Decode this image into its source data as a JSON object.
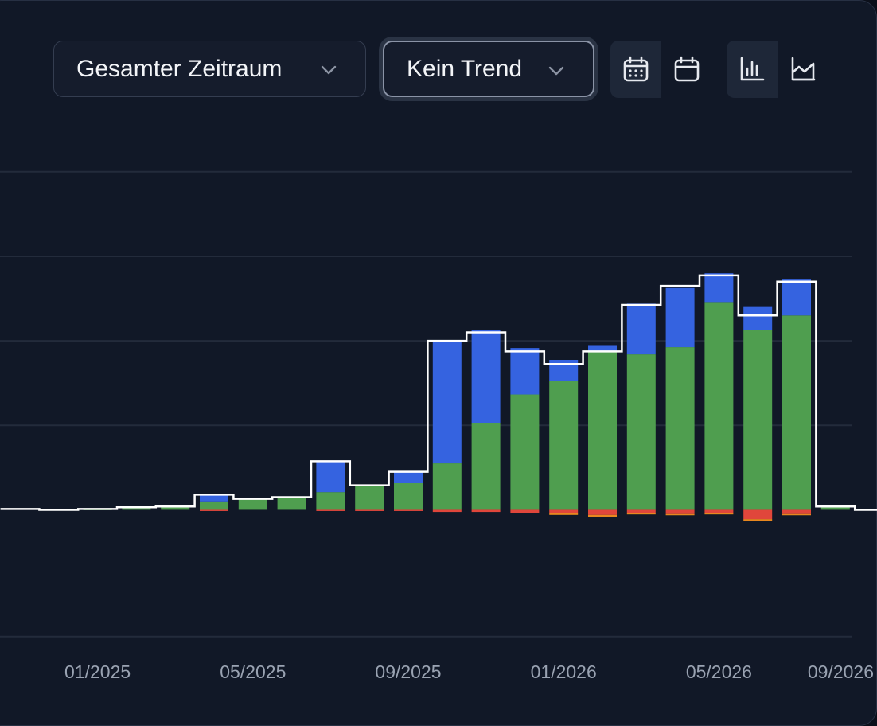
{
  "toolbar": {
    "range_select": {
      "label": "Gesamter Zeitraum",
      "icon": "chevron-down-icon"
    },
    "trend_select": {
      "label": "Kein Trend",
      "icon": "chevron-down-icon"
    },
    "granularity_toggle": [
      {
        "icon": "calendar-days-icon",
        "active": true
      },
      {
        "icon": "calendar-icon",
        "active": false
      }
    ],
    "chart_type_toggle": [
      {
        "icon": "bar-chart-icon",
        "active": true
      },
      {
        "icon": "area-chart-icon",
        "active": false
      }
    ]
  },
  "colors": {
    "background": "#111827",
    "grid": "#232b3b",
    "green": "#4f9e4f",
    "blue": "#3563e0",
    "red": "#e0463b",
    "orange": "#e8871e",
    "line": "#ffffff",
    "tick_label": "#9aa3b2"
  },
  "chart_data": {
    "type": "bar",
    "stacked": true,
    "grid": true,
    "x_ticks": [
      "01/2025",
      "05/2025",
      "09/2025",
      "01/2026",
      "05/2026",
      "09/2026"
    ],
    "categories": [
      "11/2024",
      "12/2024",
      "01/2025",
      "02/2025",
      "03/2025",
      "04/2025",
      "05/2025",
      "06/2025",
      "07/2025",
      "08/2025",
      "09/2025",
      "10/2025",
      "11/2025",
      "12/2025",
      "01/2026",
      "02/2026",
      "03/2026",
      "04/2026",
      "05/2026",
      "06/2026",
      "07/2026",
      "08/2026",
      "09/2026"
    ],
    "ylim": [
      -3.1,
      8.9
    ],
    "series": [
      {
        "color": "green",
        "values": [
          0,
          0.02,
          0.02,
          0.05,
          0.08,
          0.2,
          0.27,
          0.3,
          0.42,
          0.58,
          0.63,
          1.1,
          2.05,
          2.73,
          3.05,
          3.75,
          3.68,
          3.85,
          4.9,
          4.25,
          4.6,
          0.08,
          0
        ]
      },
      {
        "color": "blue",
        "values": [
          0,
          0,
          0,
          0,
          0,
          0.18,
          0,
          0,
          0.73,
          0,
          0.27,
          2.9,
          2.2,
          1.1,
          0.5,
          0.13,
          1.2,
          1.4,
          0.7,
          0.55,
          0.85,
          0,
          0
        ]
      },
      {
        "color": "red",
        "values": [
          0,
          0,
          0,
          0,
          0,
          -0.02,
          0,
          0,
          -0.02,
          -0.02,
          -0.02,
          -0.05,
          -0.05,
          -0.07,
          -0.08,
          -0.12,
          -0.08,
          -0.1,
          -0.08,
          -0.22,
          -0.1,
          0,
          0
        ]
      },
      {
        "color": "orange",
        "values": [
          0,
          0,
          0,
          0,
          0,
          0,
          0,
          0,
          0,
          0,
          0,
          0,
          0,
          0,
          -0.04,
          -0.05,
          -0.02,
          -0.02,
          -0.02,
          -0.05,
          -0.02,
          0,
          0
        ]
      },
      {
        "color": "line",
        "kind": "step-line",
        "values": [
          0.02,
          0,
          0.02,
          0.06,
          0.08,
          0.36,
          0.26,
          0.3,
          1.15,
          0.58,
          0.9,
          4.0,
          4.2,
          3.75,
          3.45,
          3.75,
          4.85,
          5.3,
          5.55,
          4.6,
          5.4,
          0.08,
          0
        ]
      }
    ]
  }
}
